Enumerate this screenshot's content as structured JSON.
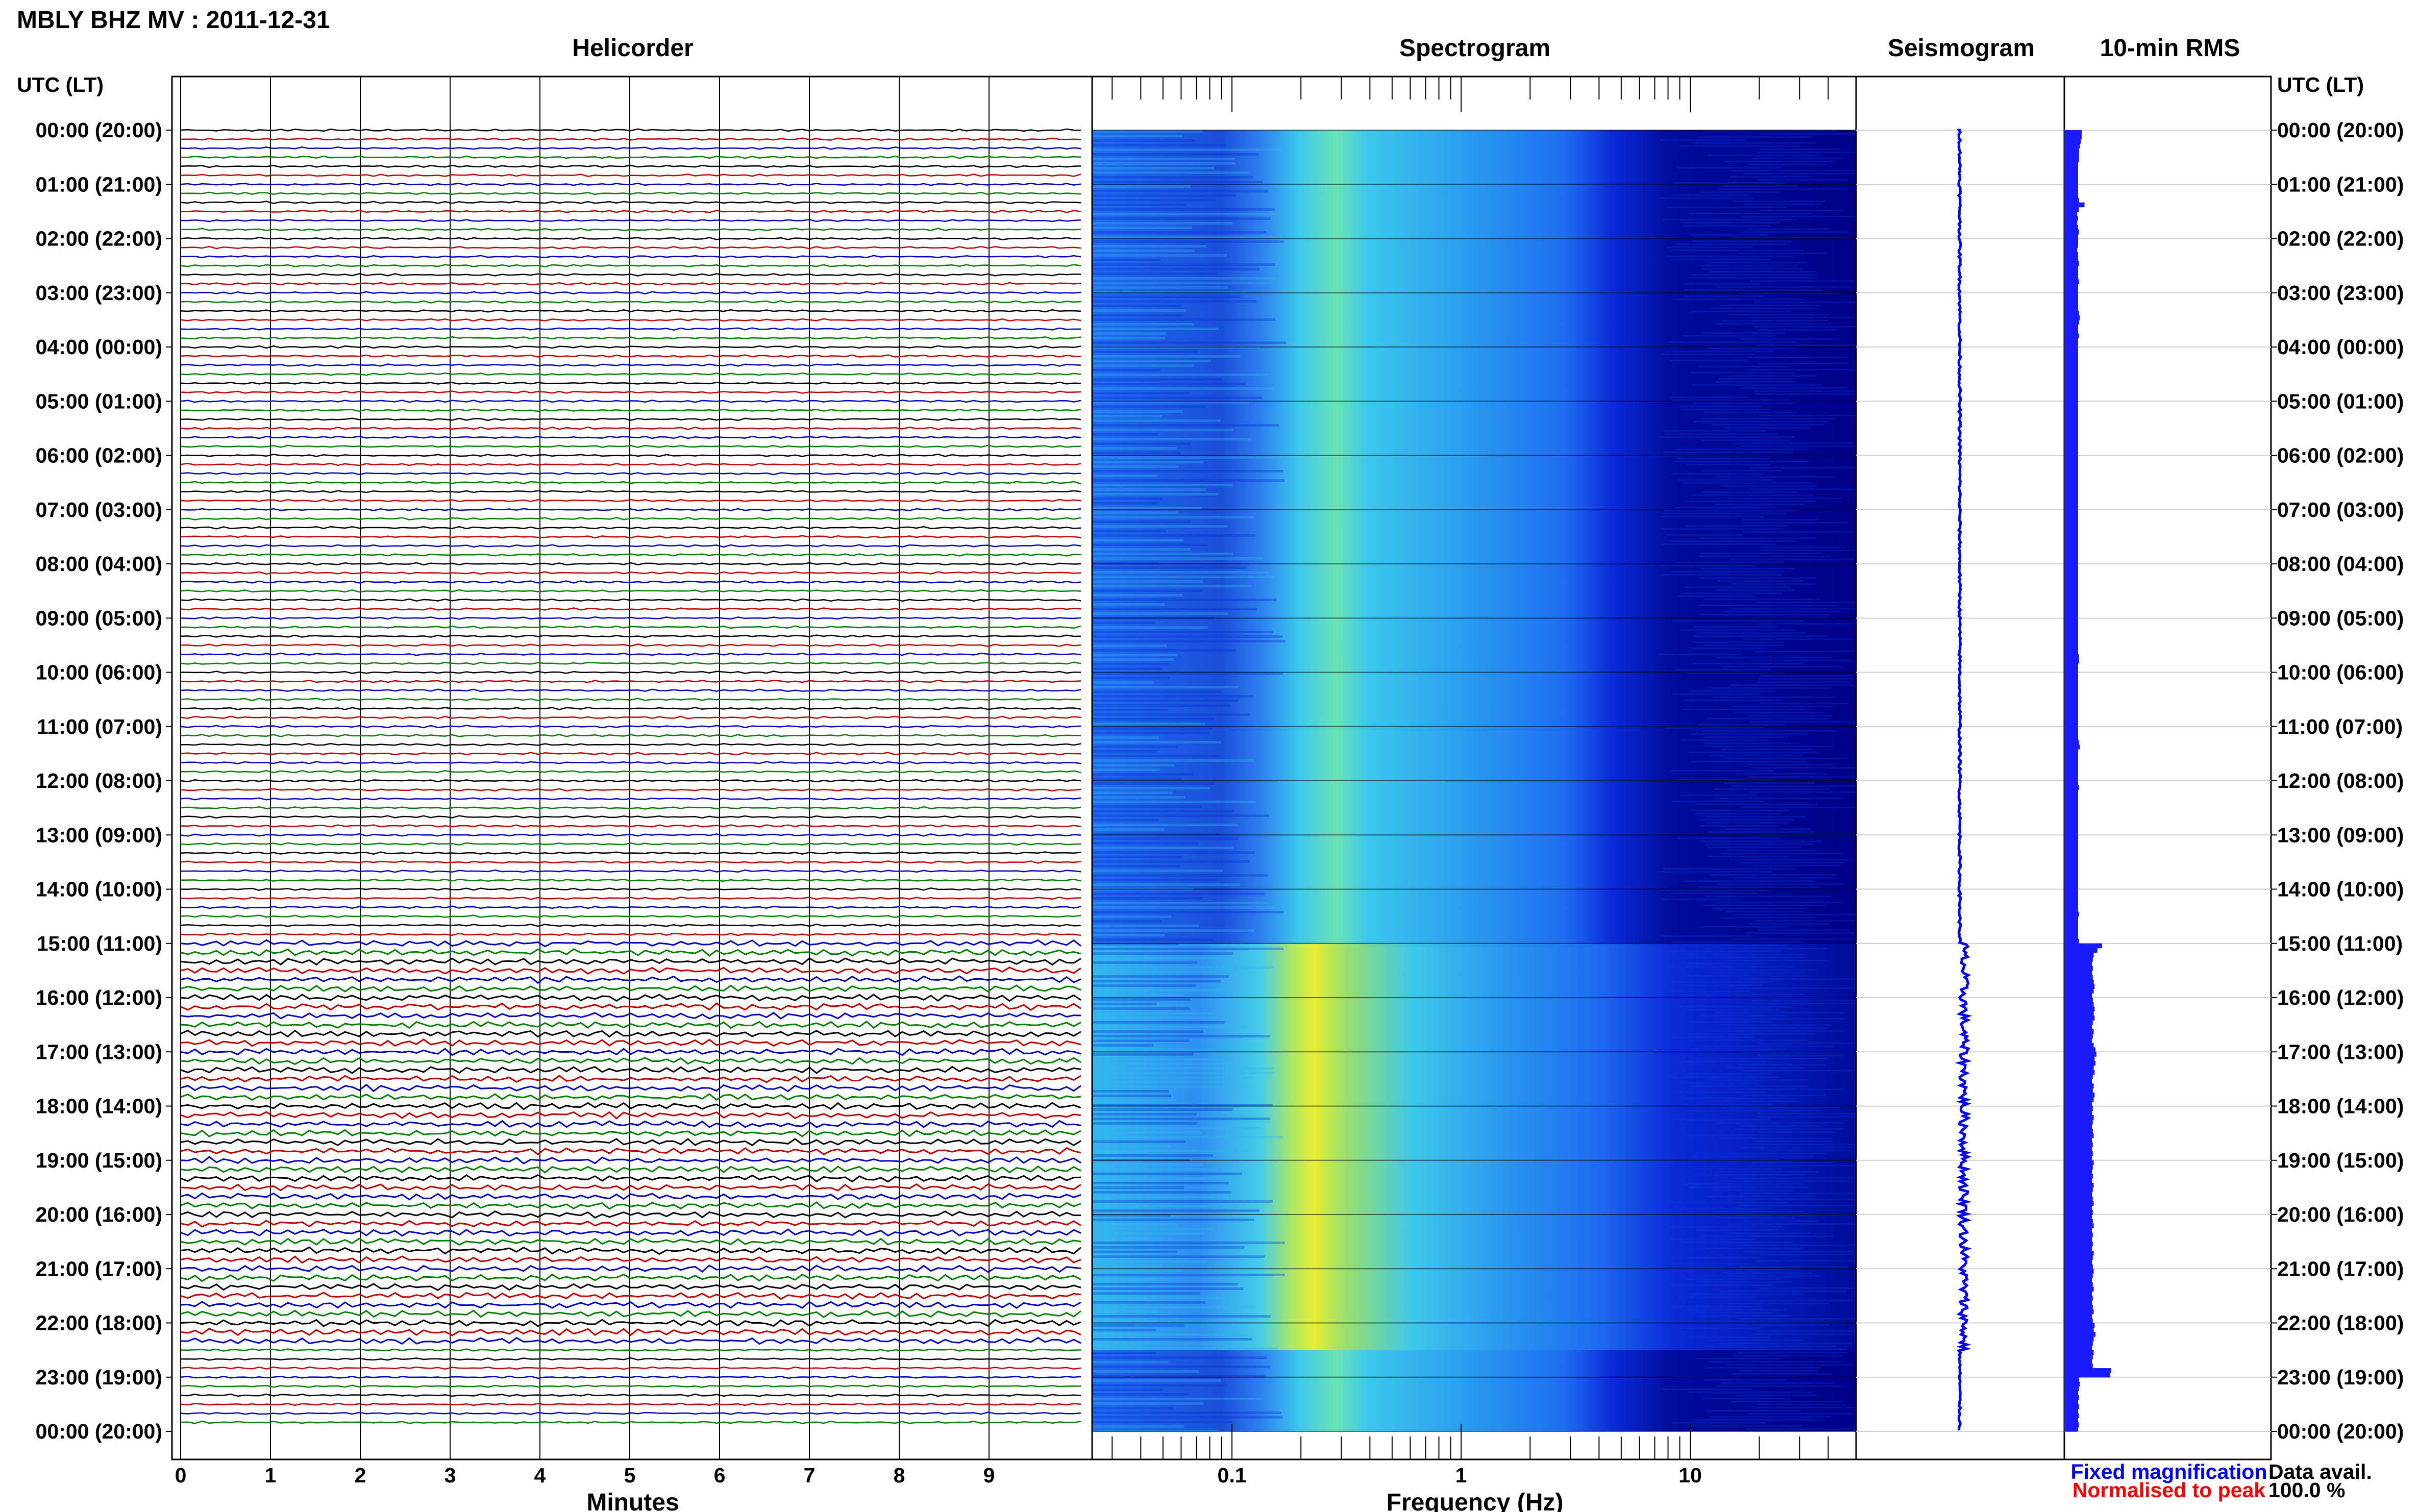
{
  "header": {
    "title": "MBLY BHZ MV : 2011-12-31"
  },
  "panels": {
    "helicorder": "Helicorder",
    "spectrogram": "Spectrogram",
    "seismogram": "Seismogram",
    "rms": "10-min RMS"
  },
  "time_axis_label": "UTC (LT)",
  "time_labels": [
    "00:00 (20:00)",
    "01:00 (21:00)",
    "02:00 (22:00)",
    "03:00 (23:00)",
    "04:00 (00:00)",
    "05:00 (01:00)",
    "06:00 (02:00)",
    "07:00 (03:00)",
    "08:00 (04:00)",
    "09:00 (05:00)",
    "10:00 (06:00)",
    "11:00 (07:00)",
    "12:00 (08:00)",
    "13:00 (09:00)",
    "14:00 (10:00)",
    "15:00 (11:00)",
    "16:00 (12:00)",
    "17:00 (13:00)",
    "18:00 (14:00)",
    "19:00 (15:00)",
    "20:00 (16:00)",
    "21:00 (17:00)",
    "22:00 (18:00)",
    "23:00 (19:00)",
    "00:00 (20:00)"
  ],
  "minutes_axis": {
    "label": "Minutes",
    "ticks": [
      "0",
      "1",
      "2",
      "3",
      "4",
      "5",
      "6",
      "7",
      "8",
      "9"
    ]
  },
  "frequency_axis": {
    "label": "Frequency (Hz)",
    "ticks": [
      "0.1",
      "1",
      "10"
    ],
    "scale": "log"
  },
  "legend": {
    "fixed": "Fixed magnification",
    "normalised": "Normalised to peak",
    "fixed_color": "#0000ff",
    "normalised_color": "#ff0000"
  },
  "data_availability": {
    "label": "Data avail.",
    "value": "100.0 %"
  },
  "colors": {
    "helicorder_lines": [
      "#000000",
      "#c00000",
      "#0000c0",
      "#008000"
    ],
    "rms_bar": "#1a1aff",
    "spectrogram": [
      "#000088",
      "#0a2bd8",
      "#1f6cf0",
      "#33c0ef",
      "#9be06a",
      "#e8ee33"
    ]
  },
  "chart_data": [
    {
      "type": "heatmap",
      "title": "Spectrogram",
      "xlabel": "Frequency (Hz)",
      "x_scale": "log",
      "xlim": [
        0.02,
        50
      ],
      "ylim": [
        "00:00",
        "24:00"
      ],
      "peak_frequency_hz": 0.22,
      "note_values": [
        {
          "from": "00:00",
          "to": "15:00",
          "level": "low"
        },
        {
          "from": "15:00",
          "to": "22:30",
          "level": "high"
        },
        {
          "from": "22:30",
          "to": "24:00",
          "level": "low"
        }
      ]
    },
    {
      "type": "bar",
      "title": "10-min RMS",
      "orientation": "horizontal",
      "bin_minutes": 10,
      "series": [
        {
          "values": [
            1.9,
            1.9,
            1.8,
            1.7,
            1.6,
            1.6,
            1.6,
            1.5,
            1.5,
            1.5,
            1.5,
            1.5,
            1.5,
            1.5,
            1.5,
            1.6,
            2.2,
            1.6,
            1.4,
            1.5,
            1.4,
            1.5,
            1.6,
            1.5,
            1.5,
            1.5,
            1.4,
            1.5,
            1.5,
            1.6,
            1.5,
            1.5,
            1.5,
            1.6,
            1.5,
            1.5,
            1.5,
            1.5,
            1.5,
            1.5,
            1.6,
            1.7,
            1.6,
            1.5,
            1.5,
            1.6,
            1.5,
            1.5,
            1.5,
            1.5,
            1.5,
            1.5,
            1.5,
            1.5,
            1.5,
            1.5,
            1.5,
            1.5,
            1.5,
            1.5,
            1.5,
            1.5,
            1.5,
            1.5,
            1.5,
            1.5,
            1.5,
            1.5,
            1.5,
            1.5,
            1.5,
            1.5,
            1.5,
            1.5,
            1.5,
            1.5,
            1.5,
            1.5,
            1.5,
            1.5,
            1.5,
            1.5,
            1.5,
            1.5,
            1.5,
            1.5,
            1.5,
            1.5,
            1.5,
            1.5,
            1.5,
            1.5,
            1.5,
            1.5,
            1.5,
            1.5,
            1.5,
            1.5,
            1.5,
            1.5,
            1.5,
            1.5,
            1.5,
            1.5,
            1.5,
            1.5,
            1.5,
            1.5,
            1.5,
            1.5,
            1.5,
            1.5,
            1.5,
            1.5,
            1.5,
            1.5,
            1.6,
            1.6,
            1.5,
            1.5,
            1.5,
            1.5,
            1.5,
            1.5,
            1.5,
            1.5,
            1.5,
            1.5,
            1.5,
            1.5,
            1.5,
            1.5,
            1.5,
            1.5,
            1.5,
            1.6,
            1.7,
            1.5,
            1.5,
            1.5,
            1.5,
            1.5,
            1.5,
            1.5,
            1.5,
            1.6,
            1.5,
            1.5,
            1.5,
            1.5,
            1.5,
            1.5,
            1.5,
            1.5,
            1.5,
            1.5,
            1.5,
            1.5,
            1.5,
            1.5,
            1.5,
            1.5,
            1.5,
            1.5,
            1.5,
            1.5,
            1.5,
            1.5,
            1.5,
            1.5,
            1.5,
            1.5,
            1.5,
            1.6,
            1.5,
            1.5,
            1.5,
            1.5,
            1.5,
            1.6,
            4.1,
            3.6,
            3.2,
            3.1,
            3.0,
            3.1,
            3.0,
            3.1,
            3.2,
            3.3,
            3.2,
            3.0,
            3.1,
            3.2,
            3.3,
            3.2,
            3.3,
            3.1,
            3.0,
            3.2,
            3.1,
            3.0,
            3.2,
            3.4,
            3.5,
            3.3,
            3.4,
            3.2,
            3.3,
            3.1,
            3.0,
            3.2,
            3.1,
            3.3,
            3.2,
            3.0,
            3.1,
            3.0,
            3.2,
            3.1,
            3.0,
            3.1,
            3.2,
            3.0,
            3.1,
            3.0,
            3.1,
            3.0,
            3.2,
            3.1,
            3.0,
            3.1,
            3.0,
            3.2,
            3.1,
            3.0,
            3.1,
            3.2,
            3.0,
            3.1,
            3.0,
            3.1,
            3.2,
            3.0,
            3.1,
            3.0,
            3.1,
            3.0,
            3.2,
            3.1,
            3.0,
            3.1,
            3.2,
            3.1,
            3.0,
            3.1,
            3.2,
            3.0,
            3.1,
            3.0,
            3.1,
            3.2,
            3.0,
            3.1,
            3.3,
            3.2,
            3.4,
            3.2,
            3.1,
            3.0,
            3.2,
            3.1,
            3.0,
            3.1,
            5.1,
            5.0,
            1.6,
            1.7,
            1.6,
            1.5,
            1.6,
            1.5,
            1.6,
            1.5,
            1.6,
            1.5,
            1.6,
            1.5
          ]
        }
      ]
    },
    {
      "type": "line",
      "title": "Seismogram",
      "orientation": "vertical",
      "description_values": {
        "quiet_until": "15:00",
        "elevated_until": "22:30"
      }
    },
    {
      "type": "line",
      "title": "Helicorder",
      "xlabel": "Minutes",
      "xlim": [
        0,
        10
      ],
      "rows": 144
    }
  ]
}
